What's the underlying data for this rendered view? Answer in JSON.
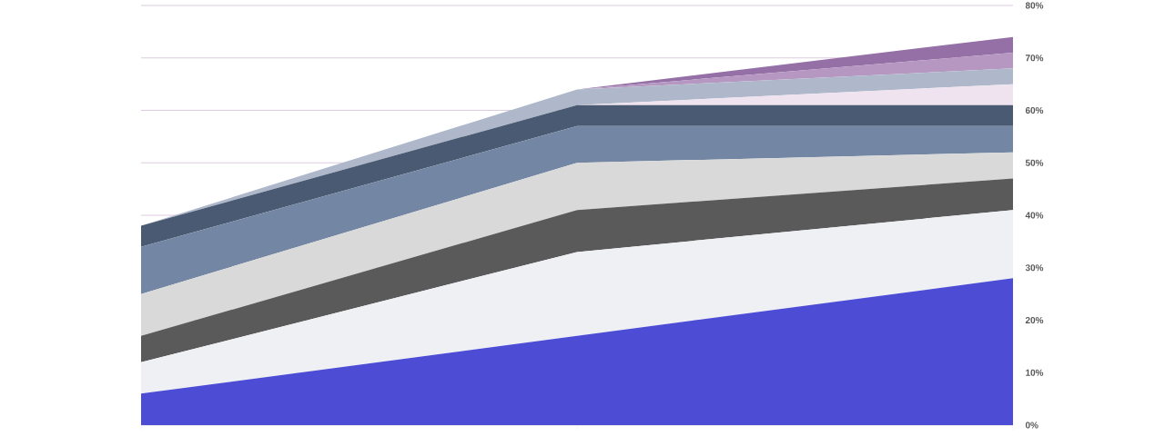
{
  "chart_data": {
    "type": "area",
    "stacked": true,
    "categories": [
      null,
      null,
      null
    ],
    "series": [
      {
        "color": "#4c4cd5",
        "values": [
          6,
          17,
          28
        ]
      },
      {
        "color": "#eff0f4",
        "values": [
          6,
          16,
          13
        ]
      },
      {
        "color": "#5a5a5a",
        "values": [
          5,
          8,
          6
        ]
      },
      {
        "color": "#d9d9d9",
        "values": [
          8,
          9,
          5
        ]
      },
      {
        "color": "#7386a3",
        "values": [
          9,
          7,
          5
        ]
      },
      {
        "color": "#4a5a73",
        "values": [
          4,
          4,
          4
        ]
      },
      {
        "color": "#efe3ef",
        "values": [
          0,
          0,
          4
        ]
      },
      {
        "color": "#aeb8ca",
        "values": [
          0,
          3,
          3
        ]
      },
      {
        "color": "#b697c1",
        "values": [
          0,
          0,
          3
        ]
      },
      {
        "color": "#9470a7",
        "values": [
          0,
          0,
          3
        ]
      }
    ],
    "ylim": [
      0,
      80
    ],
    "yticks": [
      {
        "value": 0,
        "label": "0%"
      },
      {
        "value": 10,
        "label": "10%"
      },
      {
        "value": 20,
        "label": "20%"
      },
      {
        "value": 30,
        "label": "30%"
      },
      {
        "value": 40,
        "label": "40%"
      },
      {
        "value": 50,
        "label": "50%"
      },
      {
        "value": 60,
        "label": "60%"
      },
      {
        "value": 70,
        "label": "70%"
      },
      {
        "value": 80,
        "label": "80%"
      }
    ],
    "grid": "y"
  }
}
